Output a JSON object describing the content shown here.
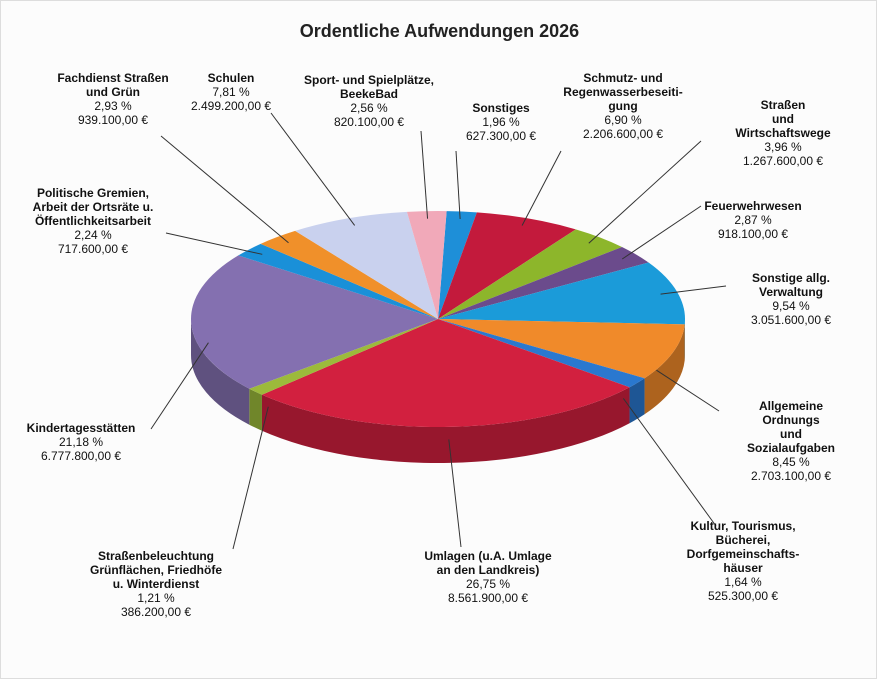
{
  "chart_data": {
    "type": "pie3d",
    "title": "Ordentliche Aufwendungen 2026",
    "categories": [
      "Sonstiges",
      "Schmutz- und\nRegenwasserbeseiti-\ngung",
      "Straßen\nund Wirtschaftswege",
      "Feuerwehrwesen",
      "Sonstige allg.\nVerwaltung",
      "Allgemeine Ordnungs\nund Sozialaufgaben",
      "Kultur, Tourismus,\nBücherei,\nDorfgemeinschafts-\nhäuser",
      "Umlagen (u.A. Umlage\nan den Landkreis)",
      "Straßenbeleuchtung\nGrünflächen, Friedhöfe\nu. Winterdienst",
      "Kindertagesstätten",
      "Politische Gremien,\nArbeit der Ortsräte u.\nÖffentlichkeitsarbeit",
      "Fachdienst Straßen\nund Grün",
      "Schulen",
      "Sport- und Spielplätze,\nBeekeBad"
    ],
    "values": [
      1.96,
      6.9,
      3.96,
      2.87,
      9.54,
      8.45,
      1.64,
      26.75,
      1.21,
      21.18,
      2.24,
      2.93,
      7.81,
      2.56
    ],
    "value_labels": [
      "1,96 %",
      "6,90 %",
      "3,96 %",
      "2,87 %",
      "9,54 %",
      "8,45 %",
      "1,64 %",
      "26,75 %",
      "1,21 %",
      "21,18 %",
      "2,24 %",
      "2,93 %",
      "7,81 %",
      "2,56 %"
    ],
    "amount_labels": [
      "627.300,00 €",
      "2.206.600,00 €",
      "1.267.600,00 €",
      "918.100,00 €",
      "3.051.600,00 €",
      "2.703.100,00 €",
      "525.300,00 €",
      "8.561.900,00 €",
      "386.200,00 €",
      "6.777.800,00 €",
      "717.600,00 €",
      "939.100,00 €",
      "2.499.200,00 €",
      "820.100,00 €"
    ],
    "colors": [
      "#1e8fd8",
      "#c31a3c",
      "#8db62b",
      "#6b4b8c",
      "#1b9bd9",
      "#f08a2a",
      "#2a78cf",
      "#d2203f",
      "#9cba3b",
      "#8470b0",
      "#1a90d8",
      "#f0902a",
      "#c9d1ee",
      "#f1a9b9"
    ]
  }
}
